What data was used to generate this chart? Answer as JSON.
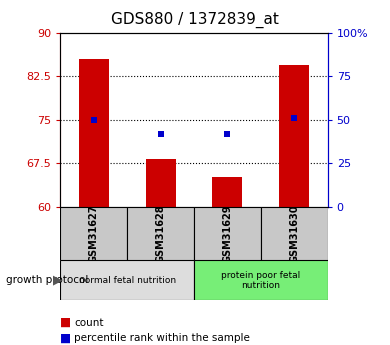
{
  "title": "GDS880 / 1372839_at",
  "samples": [
    "GSM31627",
    "GSM31628",
    "GSM31629",
    "GSM31630"
  ],
  "bar_values": [
    85.5,
    68.2,
    65.2,
    84.5
  ],
  "percentile_values": [
    50.0,
    42.0,
    42.0,
    51.0
  ],
  "bar_color": "#cc0000",
  "percentile_color": "#0000cc",
  "ylim_left": [
    60,
    90
  ],
  "ylim_right": [
    0,
    100
  ],
  "yticks_left": [
    60,
    67.5,
    75,
    82.5,
    90
  ],
  "ytick_labels_left": [
    "60",
    "67.5",
    "75",
    "82.5",
    "90"
  ],
  "yticks_right": [
    0,
    25,
    50,
    75,
    100
  ],
  "ytick_labels_right": [
    "0",
    "25",
    "50",
    "75",
    "100%"
  ],
  "dotted_lines": [
    67.5,
    75,
    82.5
  ],
  "groups": [
    {
      "label": "normal fetal nutrition",
      "samples": [
        0,
        1
      ],
      "color": "#dddddd"
    },
    {
      "label": "protein poor fetal\nnutrition",
      "samples": [
        2,
        3
      ],
      "color": "#77ee77"
    }
  ],
  "group_label": "growth protocol",
  "legend_count_label": "count",
  "legend_percentile_label": "percentile rank within the sample",
  "title_fontsize": 11,
  "tick_fontsize": 8,
  "bar_width": 0.45
}
